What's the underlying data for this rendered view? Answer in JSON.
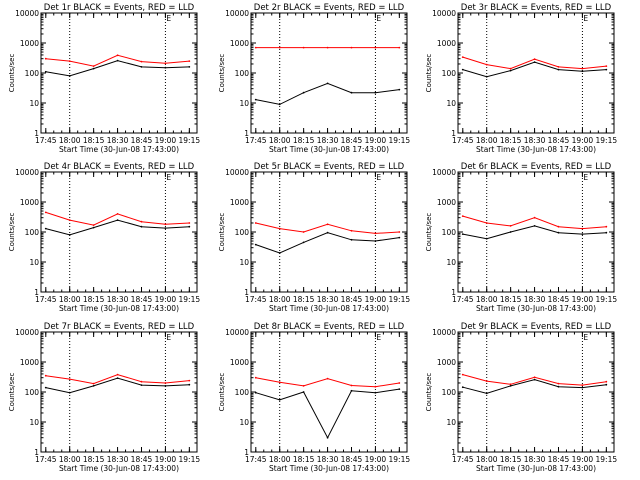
{
  "x_tick_labels": [
    "17:45",
    "18:00",
    "18:15",
    "18:30",
    "18:45",
    "19:00",
    "19:15"
  ],
  "y_tick_labels": [
    "1",
    "10",
    "100",
    "1000",
    "10000"
  ],
  "xlabel": "Start Time (30-Jun-08 17:43:00)",
  "ylabel": "Counts/sec",
  "marker_label": "E",
  "colors": {
    "events": "#000000",
    "lld": "#ff0000",
    "axes": "#000000",
    "background": "#ffffff"
  },
  "chart_data": [
    {
      "type": "line",
      "title": "Det 1r BLACK = Events, RED = LLD",
      "x_hours": [
        17.75,
        18.0,
        18.25,
        18.5,
        18.75,
        19.0,
        19.25
      ],
      "x_time": [
        "17:45",
        "18:00",
        "18:15",
        "18:30",
        "18:45",
        "19:00",
        "19:15"
      ],
      "ylim": [
        1,
        10000
      ],
      "yscale": "log",
      "vlines": [
        "18:00",
        "19:00"
      ],
      "marker_time": "19:00",
      "series": [
        {
          "name": "LLD",
          "values": [
            300,
            250,
            170,
            390,
            240,
            210,
            250
          ]
        },
        {
          "name": "Events",
          "values": [
            110,
            80,
            140,
            260,
            160,
            150,
            160
          ]
        }
      ]
    },
    {
      "type": "line",
      "title": "Det 2r BLACK = Events, RED = LLD",
      "x_hours": [
        17.75,
        18.0,
        18.25,
        18.5,
        18.75,
        19.0,
        19.25
      ],
      "x_time": [
        "17:45",
        "18:00",
        "18:15",
        "18:30",
        "18:45",
        "19:00",
        "19:15"
      ],
      "ylim": [
        1,
        10000
      ],
      "yscale": "log",
      "vlines": [
        "18:00",
        "19:00"
      ],
      "marker_time": "19:00",
      "series": [
        {
          "name": "LLD",
          "values": [
            700,
            700,
            700,
            700,
            700,
            700,
            700
          ]
        },
        {
          "name": "Events",
          "values": [
            13,
            9,
            22,
            45,
            22,
            22,
            28
          ]
        }
      ]
    },
    {
      "type": "line",
      "title": "Det 3r BLACK = Events, RED = LLD",
      "x_hours": [
        17.75,
        18.0,
        18.25,
        18.5,
        18.75,
        19.0,
        19.25
      ],
      "x_time": [
        "17:45",
        "18:00",
        "18:15",
        "18:30",
        "18:45",
        "19:00",
        "19:15"
      ],
      "ylim": [
        1,
        10000
      ],
      "yscale": "log",
      "vlines": [
        "18:00",
        "19:00"
      ],
      "marker_time": "19:00",
      "series": [
        {
          "name": "LLD",
          "values": [
            340,
            190,
            140,
            290,
            160,
            140,
            170
          ]
        },
        {
          "name": "Events",
          "values": [
            130,
            75,
            120,
            230,
            130,
            115,
            130
          ]
        }
      ]
    },
    {
      "type": "line",
      "title": "Det 4r BLACK = Events, RED = LLD",
      "x_hours": [
        17.75,
        18.0,
        18.25,
        18.5,
        18.75,
        19.0,
        19.25
      ],
      "x_time": [
        "17:45",
        "18:00",
        "18:15",
        "18:30",
        "18:45",
        "19:00",
        "19:15"
      ],
      "ylim": [
        1,
        10000
      ],
      "yscale": "log",
      "vlines": [
        "18:00",
        "19:00"
      ],
      "marker_time": "19:00",
      "series": [
        {
          "name": "LLD",
          "values": [
            450,
            250,
            170,
            400,
            220,
            180,
            200
          ]
        },
        {
          "name": "Events",
          "values": [
            130,
            80,
            140,
            250,
            150,
            135,
            150
          ]
        }
      ]
    },
    {
      "type": "line",
      "title": "Det 5r BLACK = Events, RED = LLD",
      "x_hours": [
        17.75,
        18.0,
        18.25,
        18.5,
        18.75,
        19.0,
        19.25
      ],
      "x_time": [
        "17:45",
        "18:00",
        "18:15",
        "18:30",
        "18:45",
        "19:00",
        "19:15"
      ],
      "ylim": [
        1,
        10000
      ],
      "yscale": "log",
      "vlines": [
        "18:00",
        "19:00"
      ],
      "marker_time": "19:00",
      "series": [
        {
          "name": "LLD",
          "values": [
            200,
            130,
            100,
            180,
            110,
            90,
            100
          ]
        },
        {
          "name": "Events",
          "values": [
            38,
            20,
            45,
            95,
            55,
            50,
            65
          ]
        }
      ]
    },
    {
      "type": "line",
      "title": "Det 6r BLACK = Events, RED = LLD",
      "x_hours": [
        17.75,
        18.0,
        18.25,
        18.5,
        18.75,
        19.0,
        19.25
      ],
      "x_time": [
        "17:45",
        "18:00",
        "18:15",
        "18:30",
        "18:45",
        "19:00",
        "19:15"
      ],
      "ylim": [
        1,
        10000
      ],
      "yscale": "log",
      "vlines": [
        "18:00",
        "19:00"
      ],
      "marker_time": "19:00",
      "series": [
        {
          "name": "LLD",
          "values": [
            340,
            200,
            160,
            300,
            150,
            130,
            150
          ]
        },
        {
          "name": "Events",
          "values": [
            85,
            60,
            100,
            160,
            95,
            85,
            95
          ]
        }
      ]
    },
    {
      "type": "line",
      "title": "Det 7r BLACK = Events, RED = LLD",
      "x_hours": [
        17.75,
        18.0,
        18.25,
        18.5,
        18.75,
        19.0,
        19.25
      ],
      "x_time": [
        "17:45",
        "18:00",
        "18:15",
        "18:30",
        "18:45",
        "19:00",
        "19:15"
      ],
      "ylim": [
        1,
        10000
      ],
      "yscale": "log",
      "vlines": [
        "18:00",
        "19:00"
      ],
      "marker_time": "19:00",
      "series": [
        {
          "name": "LLD",
          "values": [
            350,
            270,
            190,
            380,
            220,
            200,
            240
          ]
        },
        {
          "name": "Events",
          "values": [
            140,
            95,
            160,
            290,
            170,
            160,
            175
          ]
        }
      ]
    },
    {
      "type": "line",
      "title": "Det 8r BLACK = Events, RED = LLD",
      "x_hours": [
        17.75,
        18.0,
        18.25,
        18.5,
        18.75,
        19.0,
        19.25
      ],
      "x_time": [
        "17:45",
        "18:00",
        "18:15",
        "18:30",
        "18:45",
        "19:00",
        "19:15"
      ],
      "ylim": [
        1,
        10000
      ],
      "yscale": "log",
      "vlines": [
        "18:00",
        "19:00"
      ],
      "marker_time": "19:00",
      "series": [
        {
          "name": "LLD",
          "values": [
            300,
            210,
            160,
            280,
            165,
            150,
            200
          ]
        },
        {
          "name": "Events",
          "values": [
            95,
            55,
            100,
            3,
            110,
            95,
            125
          ]
        }
      ]
    },
    {
      "type": "line",
      "title": "Det 9r BLACK = Events, RED = LLD",
      "x_hours": [
        17.75,
        18.0,
        18.25,
        18.5,
        18.75,
        19.0,
        19.25
      ],
      "x_time": [
        "17:45",
        "18:00",
        "18:15",
        "18:30",
        "18:45",
        "19:00",
        "19:15"
      ],
      "ylim": [
        1,
        10000
      ],
      "yscale": "log",
      "vlines": [
        "18:00",
        "19:00"
      ],
      "marker_time": "19:00",
      "series": [
        {
          "name": "LLD",
          "values": [
            380,
            230,
            180,
            310,
            190,
            170,
            220
          ]
        },
        {
          "name": "Events",
          "values": [
            145,
            90,
            160,
            260,
            150,
            140,
            175
          ]
        }
      ]
    }
  ]
}
